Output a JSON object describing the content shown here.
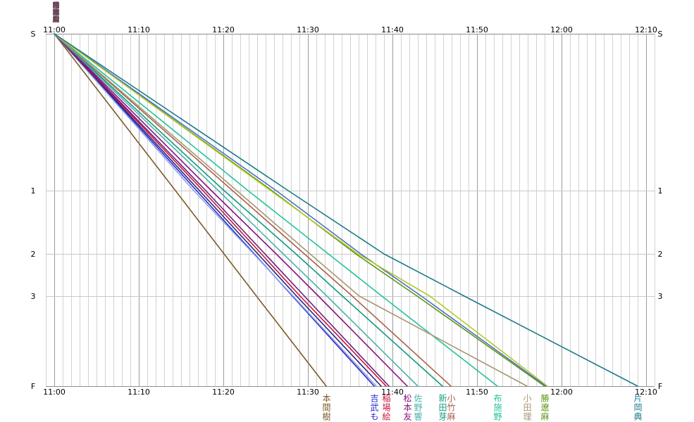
{
  "chart_data": {
    "type": "line",
    "x_ticks": [
      "11:00",
      "11:10",
      "11:20",
      "11:30",
      "11:40",
      "11:50",
      "12:00",
      "12:10"
    ],
    "xlim": [
      "10:59",
      "12:11"
    ],
    "y_ticks": [
      "S",
      "1",
      "2",
      "3",
      "F"
    ],
    "grid": true,
    "series": [
      {
        "name": "本間樹",
        "color": "#7b5b27",
        "splits": [
          "11:00:00",
          "11:14:20",
          "11:20:05",
          "11:23:55",
          "11:32:10"
        ]
      },
      {
        "name": "吉武も",
        "color": "#2a2ad0",
        "splits": [
          "11:00:00",
          "11:16:50",
          "11:23:40",
          "11:28:10",
          "11:37:50"
        ]
      },
      {
        "color": "#8fa0e8",
        "splits": [
          "11:00:00",
          "11:16:30",
          "11:23:35",
          "11:28:15",
          "11:38:05"
        ]
      },
      {
        "color": "#26267c",
        "splits": [
          "11:00:00",
          "11:17:10",
          "11:24:05",
          "11:28:40",
          "11:38:40"
        ]
      },
      {
        "name": "稲場絵",
        "color": "#c8143c",
        "splits": [
          "11:00:00",
          "11:17:35",
          "11:24:30",
          "11:29:05",
          "11:39:15"
        ]
      },
      {
        "color": "#6c1c7c",
        "splits": [
          "11:00:00",
          "11:17:55",
          "11:24:55",
          "11:29:35",
          "11:39:35"
        ]
      },
      {
        "name": "松本友",
        "color": "#8c1082",
        "splits": [
          "11:00:00",
          "11:18:35",
          "11:26:15",
          "11:31:15",
          "11:41:45"
        ]
      },
      {
        "name": "佐野響",
        "color": "#4ab4a8",
        "splits": [
          "11:00:00",
          "11:19:25",
          "11:27:05",
          "11:32:15",
          "11:43:00"
        ]
      },
      {
        "name": "新田芽",
        "color": "#109a80",
        "splits": [
          "11:00:00",
          "11:20:05",
          "11:28:35",
          "11:34:05",
          "11:45:55"
        ]
      },
      {
        "name": "小竹麻",
        "color": "#a8624c",
        "splits": [
          "11:00:00",
          "11:21:05",
          "11:29:35",
          "11:35:15",
          "11:46:55"
        ]
      },
      {
        "name": "布施野",
        "color": "#22c39a",
        "splits": [
          "11:00:00",
          "11:22:55",
          "11:32:25",
          "11:38:45",
          "11:52:25"
        ]
      },
      {
        "name": "小田理",
        "color": "#a69674",
        "splits": [
          "11:00:00",
          "11:21:35",
          "11:30:15",
          "11:36:05",
          "11:55:55"
        ]
      },
      {
        "name": "勝遼麻",
        "color": "#5e9414",
        "splits": [
          "11:00:00",
          "11:25:45",
          "11:35:40",
          "11:42:55",
          "11:58:00"
        ]
      },
      {
        "color": "#4a70c8",
        "splits": [
          "11:00:00",
          "11:26:15",
          "11:36:15",
          "11:43:25",
          "11:58:10"
        ]
      },
      {
        "color": "#b6ca26",
        "splits": [
          "11:00:00",
          "11:25:35",
          "11:35:55",
          "11:44:25",
          "11:58:20"
        ]
      },
      {
        "name": "片岡典",
        "color": "#1d7a8c",
        "splits": [
          "11:00:00",
          "11:27:40",
          "11:39:00",
          "11:48:30",
          "12:09:00"
        ]
      }
    ]
  }
}
